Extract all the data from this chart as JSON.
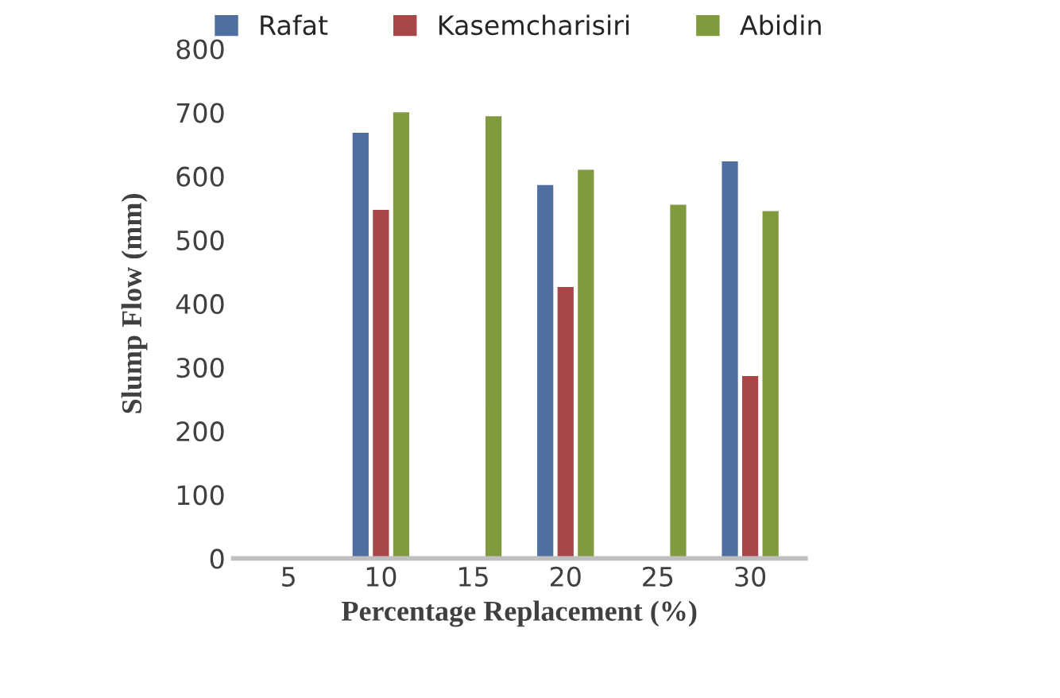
{
  "chart_data": {
    "type": "bar",
    "xlabel": "Percentage Replacement (%)",
    "ylabel": "Slump Flow (mm)",
    "categories": [
      "5",
      "10",
      "15",
      "20",
      "25",
      "30"
    ],
    "series": [
      {
        "name": "Rafat",
        "color": "#4f6fa0",
        "values": [
          null,
          670,
          null,
          588,
          null,
          625
        ]
      },
      {
        "name": "Kasemcharisiri",
        "color": "#a8474a",
        "values": [
          null,
          549,
          null,
          428,
          null,
          288
        ]
      },
      {
        "name": "Abidin",
        "color": "#7f9a3f",
        "values": [
          null,
          702,
          696,
          612,
          557,
          547
        ]
      }
    ],
    "ylim": [
      0,
      800
    ],
    "yticks": [
      0,
      100,
      200,
      300,
      400,
      500,
      600,
      700,
      800
    ],
    "grid": false,
    "legend": "top"
  }
}
